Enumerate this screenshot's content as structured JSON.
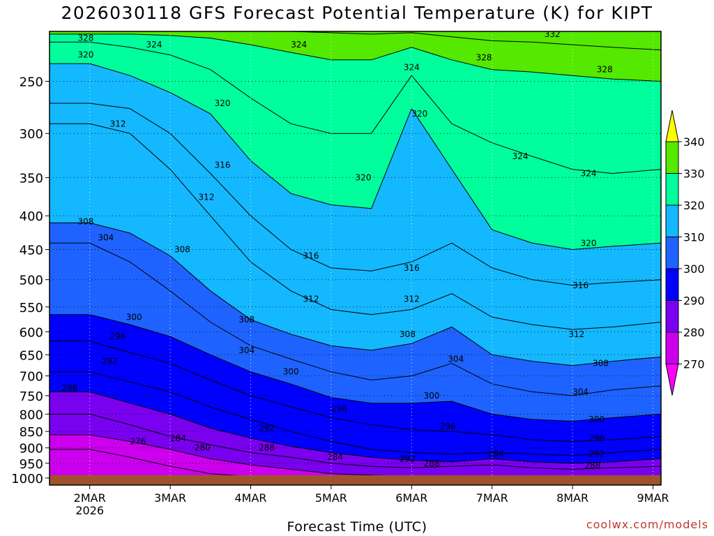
{
  "chart_data": {
    "type": "heatmap",
    "title": "2026030118 GFS Forecast Potential Temperature (K) for KIPT",
    "xlabel": "Forecast Time (UTC)",
    "ylabel": "",
    "x_ticks": [
      {
        "label": "2MAR",
        "sub": "2026",
        "t": 0.5
      },
      {
        "label": "3MAR",
        "sub": "",
        "t": 1.5
      },
      {
        "label": "4MAR",
        "sub": "",
        "t": 2.5
      },
      {
        "label": "5MAR",
        "sub": "",
        "t": 3.5
      },
      {
        "label": "6MAR",
        "sub": "",
        "t": 4.5
      },
      {
        "label": "7MAR",
        "sub": "",
        "t": 5.5
      },
      {
        "label": "8MAR",
        "sub": "",
        "t": 6.5
      },
      {
        "label": "9MAR",
        "sub": "",
        "t": 7.5
      }
    ],
    "xlim": [
      0,
      7.6
    ],
    "y_ticks": [
      250,
      300,
      350,
      400,
      450,
      500,
      550,
      600,
      650,
      700,
      750,
      800,
      850,
      900,
      950,
      1000
    ],
    "ylim": [
      1025,
      210
    ],
    "y_scale": "log-pressure (inverted)",
    "surface_pressure": 1000,
    "legend": {
      "placement": "right",
      "levels": [
        270,
        280,
        290,
        300,
        310,
        320,
        330,
        340
      ],
      "colors": [
        "#ff00ff",
        "#cc00ee",
        "#7a00f0",
        "#0000ff",
        "#1e63ff",
        "#14b8ff",
        "#00ff9c",
        "#55e800",
        "#ffff00"
      ]
    },
    "series": [
      {
        "level": 276,
        "x": [
          0.5,
          1.0,
          1.5,
          2.0,
          2.5,
          3.0,
          3.5,
          4.0,
          4.5,
          5.0,
          5.5,
          6.0,
          6.5,
          7.0,
          7.6
        ],
        "p": [
          905,
          930,
          960,
          985,
          995,
          1000,
          1000,
          1000,
          1000,
          1000,
          1000,
          1000,
          1000,
          1000,
          1000
        ]
      },
      {
        "level": 280,
        "x": [
          0.5,
          1.0,
          1.5,
          2.0,
          2.5,
          3.0,
          3.5,
          4.0,
          4.5,
          5.0,
          5.5,
          6.0,
          6.5,
          7.0,
          7.6
        ],
        "p": [
          860,
          880,
          905,
          935,
          955,
          970,
          985,
          990,
          995,
          998,
          995,
          998,
          998,
          998,
          998
        ]
      },
      {
        "level": 284,
        "x": [
          0.5,
          1.0,
          1.5,
          2.0,
          2.5,
          3.0,
          3.5,
          4.0,
          4.5,
          5.0,
          5.5,
          6.0,
          6.5,
          7.0,
          7.6
        ],
        "p": [
          800,
          830,
          865,
          890,
          915,
          930,
          950,
          960,
          965,
          960,
          955,
          965,
          970,
          965,
          960
        ]
      },
      {
        "level": 288,
        "x": [
          0.5,
          1.0,
          1.5,
          2.0,
          2.5,
          3.0,
          3.5,
          4.0,
          4.5,
          5.0,
          5.5,
          6.0,
          6.5,
          7.0,
          7.6
        ],
        "p": [
          740,
          770,
          800,
          840,
          870,
          895,
          915,
          930,
          940,
          945,
          935,
          945,
          950,
          945,
          935
        ]
      },
      {
        "level": 292,
        "x": [
          0.5,
          1.0,
          1.5,
          2.0,
          2.5,
          3.0,
          3.5,
          4.0,
          4.5,
          5.0,
          5.5,
          6.0,
          6.5,
          7.0,
          7.6
        ],
        "p": [
          690,
          715,
          740,
          780,
          815,
          850,
          880,
          905,
          915,
          920,
          915,
          920,
          925,
          915,
          905
        ]
      },
      {
        "level": 296,
        "x": [
          0.5,
          1.0,
          1.5,
          2.0,
          2.5,
          3.0,
          3.5,
          4.0,
          4.5,
          5.0,
          5.5,
          6.0,
          6.5,
          7.0,
          7.6
        ],
        "p": [
          620,
          645,
          670,
          710,
          750,
          780,
          810,
          830,
          845,
          850,
          860,
          875,
          880,
          875,
          865
        ]
      },
      {
        "level": 300,
        "x": [
          0.5,
          1.0,
          1.5,
          2.0,
          2.5,
          3.0,
          3.5,
          4.0,
          4.5,
          5.0,
          5.5,
          6.0,
          6.5,
          7.0,
          7.6
        ],
        "p": [
          565,
          585,
          610,
          650,
          690,
          720,
          755,
          770,
          770,
          765,
          800,
          815,
          820,
          810,
          800
        ]
      },
      {
        "level": 304,
        "x": [
          0.5,
          1.0,
          1.5,
          2.0,
          2.5,
          3.0,
          3.5,
          4.0,
          4.5,
          5.0,
          5.5,
          6.0,
          6.5,
          7.0,
          7.6
        ],
        "p": [
          440,
          470,
          520,
          580,
          630,
          660,
          690,
          710,
          700,
          670,
          720,
          740,
          750,
          735,
          725
        ]
      },
      {
        "level": 308,
        "x": [
          0.5,
          1.0,
          1.5,
          2.0,
          2.5,
          3.0,
          3.5,
          4.0,
          4.5,
          5.0,
          5.5,
          6.0,
          6.5,
          7.0,
          7.6
        ],
        "p": [
          410,
          425,
          460,
          520,
          575,
          605,
          630,
          640,
          625,
          590,
          650,
          665,
          675,
          665,
          655
        ]
      },
      {
        "level": 312,
        "x": [
          0.5,
          1.0,
          1.5,
          2.0,
          2.5,
          3.0,
          3.5,
          4.0,
          4.5,
          5.0,
          5.5,
          6.0,
          6.5,
          7.0,
          7.6
        ],
        "p": [
          290,
          300,
          340,
          400,
          470,
          520,
          555,
          565,
          555,
          525,
          570,
          585,
          595,
          590,
          580
        ]
      },
      {
        "level": 316,
        "x": [
          0.5,
          1.0,
          1.5,
          2.0,
          2.5,
          3.0,
          3.5,
          4.0,
          4.5,
          5.0,
          5.5,
          6.0,
          6.5,
          7.0,
          7.6
        ],
        "p": [
          270,
          275,
          300,
          345,
          400,
          450,
          480,
          485,
          470,
          440,
          480,
          500,
          510,
          505,
          500
        ]
      },
      {
        "level": 320,
        "x": [
          0.5,
          1.0,
          1.5,
          2.0,
          2.5,
          3.0,
          3.5,
          4.0,
          4.5,
          5.0,
          5.5,
          6.0,
          6.5,
          7.0,
          7.6
        ],
        "p": [
          235,
          245,
          260,
          280,
          330,
          370,
          385,
          390,
          275,
          340,
          420,
          440,
          450,
          445,
          440
        ]
      },
      {
        "level": 324,
        "x": [
          0.5,
          1.0,
          1.5,
          2.0,
          2.5,
          3.0,
          3.5,
          4.0,
          4.5,
          5.0,
          5.5,
          6.0,
          6.5,
          7.0,
          7.6
        ],
        "p": [
          218,
          222,
          228,
          240,
          265,
          290,
          300,
          300,
          245,
          290,
          310,
          325,
          340,
          345,
          340
        ]
      },
      {
        "level": 328,
        "x": [
          0.5,
          1.0,
          1.5,
          2.0,
          2.5,
          3.0,
          3.5,
          4.0,
          4.5,
          5.0,
          5.5,
          6.0,
          6.5,
          7.0,
          7.6
        ],
        "p": [
          212,
          212,
          213,
          215,
          220,
          226,
          232,
          232,
          222,
          232,
          240,
          242,
          245,
          248,
          250
        ]
      },
      {
        "level": 332,
        "x": [
          0.5,
          1.0,
          1.5,
          2.0,
          2.5,
          3.0,
          3.5,
          4.0,
          4.5,
          5.0,
          5.5,
          6.0,
          6.5,
          7.0,
          7.6
        ],
        "p": [
          210,
          210,
          210,
          210,
          210,
          210,
          211,
          212,
          211,
          214,
          217,
          218,
          220,
          222,
          224
        ]
      }
    ],
    "contour_labels": [
      {
        "text": "328",
        "x": 0.45,
        "p": 215
      },
      {
        "text": "324",
        "x": 1.3,
        "p": 220
      },
      {
        "text": "320",
        "x": 0.45,
        "p": 228
      },
      {
        "text": "324",
        "x": 3.1,
        "p": 220
      },
      {
        "text": "332",
        "x": 6.25,
        "p": 212
      },
      {
        "text": "328",
        "x": 5.4,
        "p": 230
      },
      {
        "text": "324",
        "x": 4.5,
        "p": 238
      },
      {
        "text": "328",
        "x": 6.9,
        "p": 240
      },
      {
        "text": "320",
        "x": 2.15,
        "p": 270
      },
      {
        "text": "320",
        "x": 4.6,
        "p": 280
      },
      {
        "text": "312",
        "x": 0.85,
        "p": 290
      },
      {
        "text": "324",
        "x": 5.85,
        "p": 325
      },
      {
        "text": "316",
        "x": 2.15,
        "p": 335
      },
      {
        "text": "324",
        "x": 6.7,
        "p": 345
      },
      {
        "text": "320",
        "x": 3.9,
        "p": 350
      },
      {
        "text": "312",
        "x": 1.95,
        "p": 375
      },
      {
        "text": "308",
        "x": 0.45,
        "p": 408
      },
      {
        "text": "304",
        "x": 0.7,
        "p": 432
      },
      {
        "text": "320",
        "x": 6.7,
        "p": 440
      },
      {
        "text": "308",
        "x": 1.65,
        "p": 450
      },
      {
        "text": "316",
        "x": 3.25,
        "p": 460
      },
      {
        "text": "316",
        "x": 4.5,
        "p": 480
      },
      {
        "text": "316",
        "x": 6.6,
        "p": 510
      },
      {
        "text": "312",
        "x": 3.25,
        "p": 535
      },
      {
        "text": "312",
        "x": 4.5,
        "p": 535
      },
      {
        "text": "300",
        "x": 1.05,
        "p": 570
      },
      {
        "text": "308",
        "x": 2.45,
        "p": 575
      },
      {
        "text": "296",
        "x": 0.85,
        "p": 610
      },
      {
        "text": "308",
        "x": 4.45,
        "p": 605
      },
      {
        "text": "312",
        "x": 6.55,
        "p": 605
      },
      {
        "text": "304",
        "x": 2.45,
        "p": 640
      },
      {
        "text": "304",
        "x": 5.05,
        "p": 660
      },
      {
        "text": "292",
        "x": 0.75,
        "p": 665
      },
      {
        "text": "308",
        "x": 6.85,
        "p": 670
      },
      {
        "text": "300",
        "x": 3.0,
        "p": 690
      },
      {
        "text": "288",
        "x": 0.25,
        "p": 730
      },
      {
        "text": "304",
        "x": 6.6,
        "p": 740
      },
      {
        "text": "300",
        "x": 4.75,
        "p": 750
      },
      {
        "text": "296",
        "x": 3.6,
        "p": 785
      },
      {
        "text": "300",
        "x": 6.8,
        "p": 815
      },
      {
        "text": "292",
        "x": 2.7,
        "p": 840
      },
      {
        "text": "296",
        "x": 4.95,
        "p": 835
      },
      {
        "text": "284",
        "x": 1.6,
        "p": 870
      },
      {
        "text": "276",
        "x": 1.1,
        "p": 880
      },
      {
        "text": "280",
        "x": 1.9,
        "p": 900
      },
      {
        "text": "288",
        "x": 2.7,
        "p": 900
      },
      {
        "text": "296",
        "x": 6.8,
        "p": 870
      },
      {
        "text": "292",
        "x": 6.8,
        "p": 920
      },
      {
        "text": "284",
        "x": 3.55,
        "p": 930
      },
      {
        "text": "292",
        "x": 4.45,
        "p": 935
      },
      {
        "text": "284",
        "x": 5.55,
        "p": 918
      },
      {
        "text": "288",
        "x": 4.75,
        "p": 950
      },
      {
        "text": "288",
        "x": 6.75,
        "p": 957
      }
    ]
  },
  "credit": "coolwx.com/models"
}
